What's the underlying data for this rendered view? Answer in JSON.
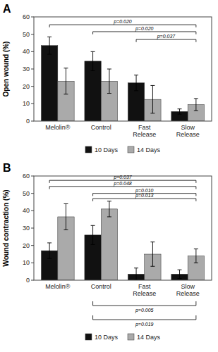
{
  "chart_data": [
    {
      "type": "bar",
      "title": "A",
      "ylabel": "Open wound (%)",
      "categories": [
        "Melolin®",
        "Control",
        "Fast Release",
        "Slow Release"
      ],
      "series": [
        {
          "name": "10 Days",
          "color": "#111111",
          "values": [
            43.5,
            34.5,
            22.0,
            5.5
          ],
          "errors": [
            5.0,
            5.5,
            4.5,
            1.5
          ]
        },
        {
          "name": "14 Days",
          "color": "#aaaaaa",
          "values": [
            23.0,
            23.0,
            12.5,
            9.5
          ],
          "errors": [
            7.5,
            7.0,
            8.0,
            3.5
          ]
        }
      ],
      "ylim": [
        0,
        60
      ],
      "yticks": [
        0,
        10,
        20,
        30,
        40,
        50,
        60
      ],
      "grid": false,
      "legend": "bottom",
      "annotations": [
        {
          "label": "p=0.020",
          "from": "Melolin®",
          "to": "Slow Release",
          "y": 55.5
        },
        {
          "label": "p=0.020",
          "from": "Control",
          "to": "Slow Release",
          "y": 51.5
        },
        {
          "label": "p=0.037",
          "from": "Fast Release",
          "to": "Slow Release",
          "y": 47.0
        }
      ]
    },
    {
      "type": "bar",
      "title": "B",
      "ylabel": "Wound contraction (%)",
      "categories": [
        "Melolin®",
        "Control",
        "Fast Release",
        "Slow Release"
      ],
      "series": [
        {
          "name": "10 Days",
          "color": "#111111",
          "values": [
            17.0,
            26.0,
            3.5,
            3.5
          ],
          "errors": [
            4.5,
            5.5,
            3.5,
            2.5
          ]
        },
        {
          "name": "14 Days",
          "color": "#aaaaaa",
          "values": [
            36.5,
            41.0,
            15.0,
            14.0
          ],
          "errors": [
            7.5,
            4.5,
            7.0,
            4.0
          ]
        }
      ],
      "ylim": [
        0,
        60
      ],
      "yticks": [
        0,
        10,
        20,
        30,
        40,
        50,
        60
      ],
      "grid": false,
      "legend": "bottom",
      "annotations": [
        {
          "label": "p=0.037",
          "from": "Melolin®",
          "to": "Slow Release",
          "y": 57.5
        },
        {
          "label": "p=0.048",
          "from": "Melolin®",
          "to": "Slow Release",
          "y": 54.0
        },
        {
          "label": "p=0.010",
          "from": "Control",
          "to": "Slow Release",
          "y": 50.0
        },
        {
          "label": "p=0.013",
          "from": "Control",
          "to": "Slow Release",
          "y": 47.0
        },
        {
          "label": "p=0.005",
          "from": "Control",
          "to": "Slow Release"
        },
        {
          "label": "p=0.019",
          "from": "Control",
          "to": "Slow Release"
        }
      ]
    }
  ]
}
